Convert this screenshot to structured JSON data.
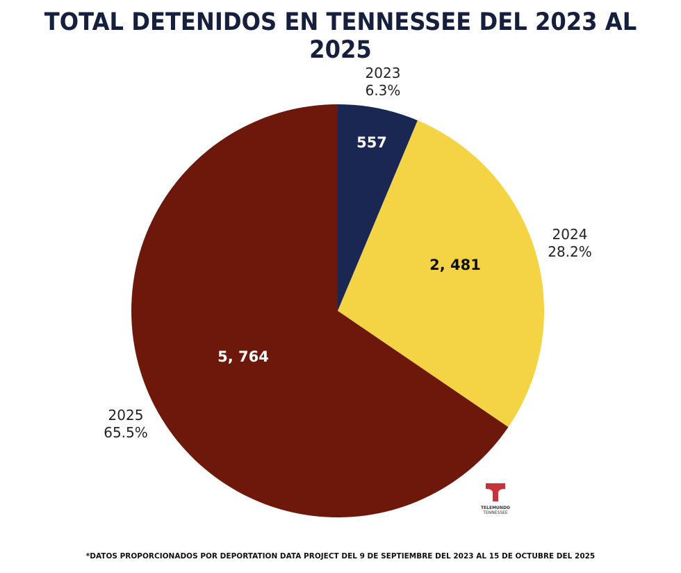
{
  "chart_data": {
    "type": "pie",
    "title": "TOTAL DETENIDOS EN TENNESSEE DEL 2023 AL 2025",
    "start_angle": "12 o'clock",
    "direction": "clockwise",
    "slices": [
      {
        "label": "2023",
        "value": 557,
        "value_label": "557",
        "percent": 6.3,
        "percent_label": "6.3%",
        "color": "#1a2753",
        "text_color": "#ffffff"
      },
      {
        "label": "2024",
        "value": 2481,
        "value_label": "2, 481",
        "percent": 28.2,
        "percent_label": "28.2%",
        "color": "#f4d444",
        "text_color": "#111111"
      },
      {
        "label": "2025",
        "value": 5764,
        "value_label": "5, 764",
        "percent": 65.5,
        "percent_label": "65.5%",
        "color": "#6e180c",
        "text_color": "#ffffff"
      }
    ]
  },
  "footnote": "*DATOS PROPORCIONADOS POR DEPORTATION DATA PROJECT DEL 9 DE SEPTIEMBRE DEL 2023 AL 15 DE OCTUBRE DEL 2025",
  "logo": {
    "line1": "TELEMUNDO",
    "line2": "TENNESSEE",
    "color": "#c8323a"
  }
}
